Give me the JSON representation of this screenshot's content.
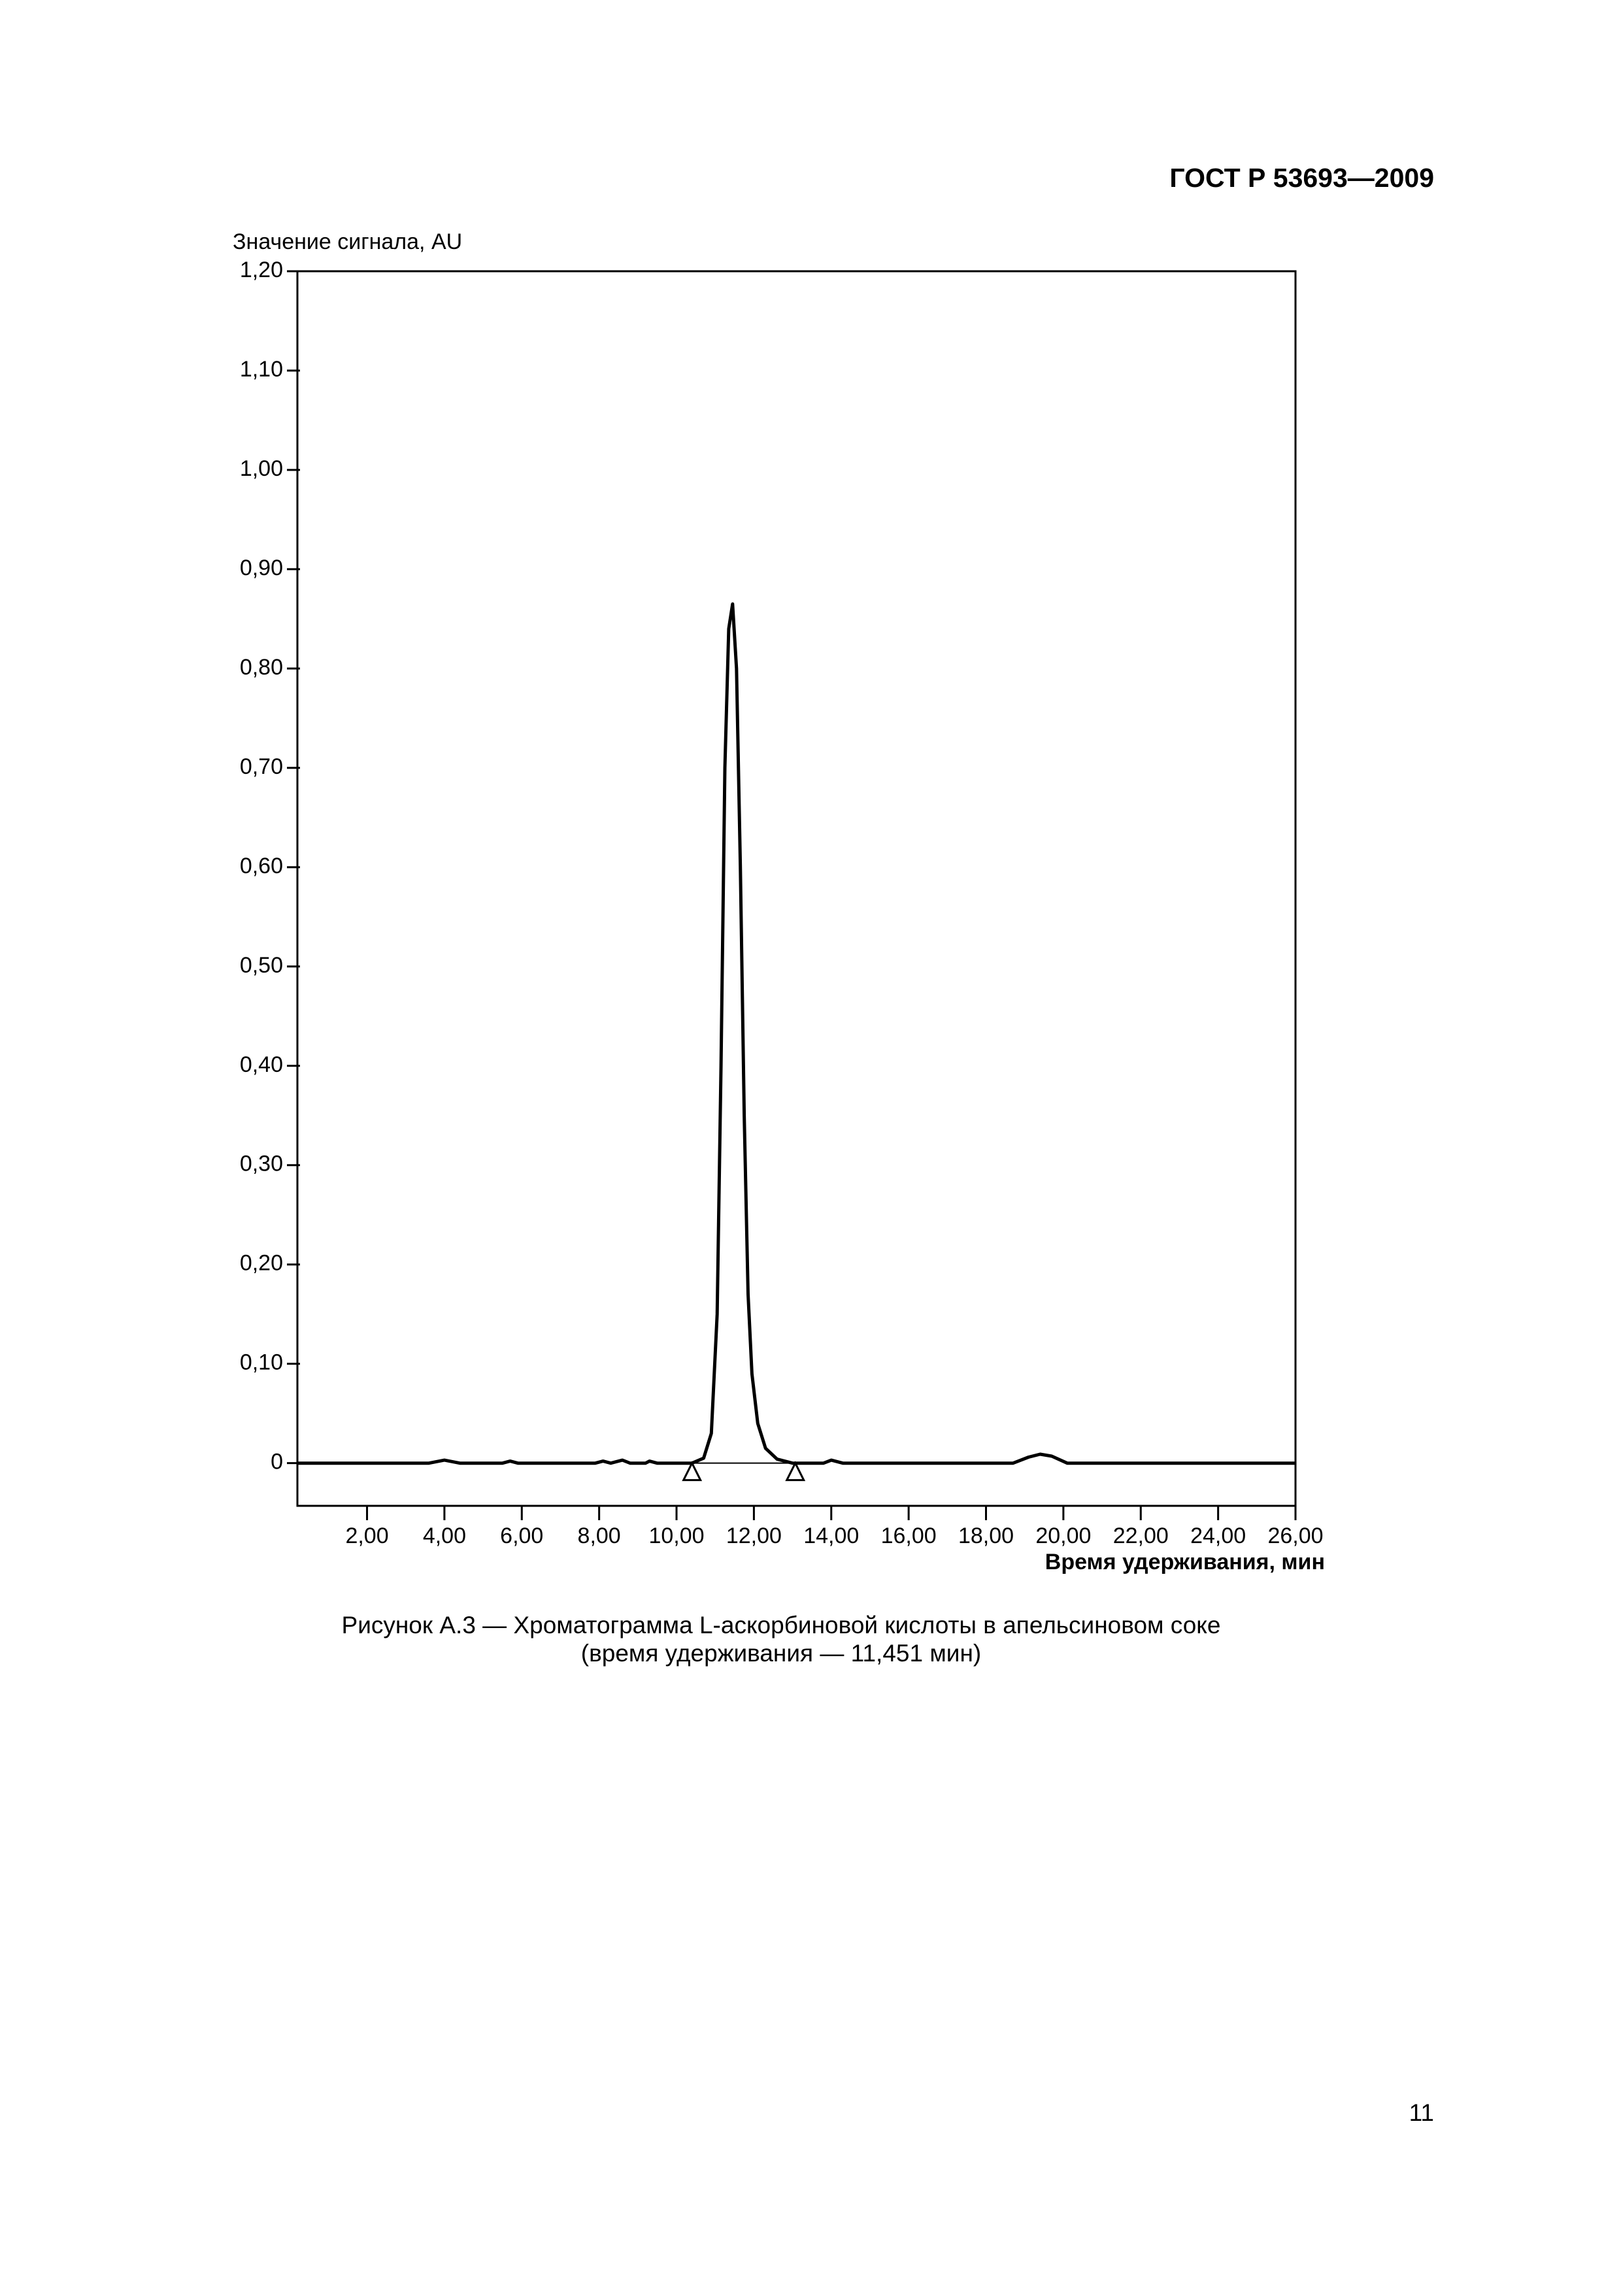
{
  "header": {
    "code": "ГОСТ Р 53693—2009"
  },
  "chart_data": {
    "type": "line",
    "y_label": "Значение сигнала, AU",
    "x_label": "Время удерживания, мин",
    "xlim": [
      0.2,
      26
    ],
    "ylim": [
      -0.043,
      1.2
    ],
    "xticks": [
      {
        "value": 2,
        "label": "2,00"
      },
      {
        "value": 4,
        "label": "4,00"
      },
      {
        "value": 6,
        "label": "6,00"
      },
      {
        "value": 8,
        "label": "8,00"
      },
      {
        "value": 10,
        "label": "10,00"
      },
      {
        "value": 12,
        "label": "12,00"
      },
      {
        "value": 14,
        "label": "14,00"
      },
      {
        "value": 16,
        "label": "16,00"
      },
      {
        "value": 18,
        "label": "18,00"
      },
      {
        "value": 20,
        "label": "20,00"
      },
      {
        "value": 22,
        "label": "22,00"
      },
      {
        "value": 24,
        "label": "24,00"
      },
      {
        "value": 26,
        "label": "26,00"
      }
    ],
    "yticks": [
      0,
      {
        "value": 0.1,
        "label": "0,10"
      },
      {
        "value": 0.2,
        "label": "0,20"
      },
      {
        "value": 0.3,
        "label": "0,30"
      },
      {
        "value": 0.4,
        "label": "0,40"
      },
      {
        "value": 0.5,
        "label": "0,50"
      },
      {
        "value": 0.6,
        "label": "0,60"
      },
      {
        "value": 0.7,
        "label": "0,70"
      },
      {
        "value": 0.8,
        "label": "0,80"
      },
      {
        "value": 0.9,
        "label": "0,90"
      },
      {
        "value": 1.0,
        "label": "1,00"
      },
      {
        "value": 1.1,
        "label": "1,10"
      },
      {
        "value": 1.2,
        "label": "1,20"
      }
    ],
    "x": [
      0.2,
      3.6,
      4.0,
      4.4,
      5.5,
      5.7,
      5.9,
      7.9,
      8.1,
      8.3,
      8.6,
      8.8,
      9.2,
      9.3,
      9.5,
      10.4,
      10.7,
      10.9,
      11.05,
      11.15,
      11.25,
      11.35,
      11.45,
      11.55,
      11.65,
      11.75,
      11.85,
      11.95,
      12.1,
      12.3,
      12.6,
      13.0,
      13.8,
      14.0,
      14.3,
      18.7,
      19.1,
      19.4,
      19.7,
      20.1,
      26
    ],
    "values": [
      0,
      0,
      0.003,
      0,
      0,
      0.002,
      0,
      0,
      0.002,
      0,
      0.003,
      0,
      0,
      0.002,
      0,
      0,
      0.005,
      0.03,
      0.15,
      0.4,
      0.7,
      0.84,
      0.865,
      0.8,
      0.6,
      0.35,
      0.17,
      0.09,
      0.04,
      0.015,
      0.004,
      0,
      0,
      0.003,
      0,
      0,
      0.006,
      0.009,
      0.007,
      0,
      0
    ],
    "color": "#000000",
    "integration_marks": [
      10.4,
      13.07
    ]
  },
  "caption": {
    "line1": "Рисунок А.3 — Хроматограмма L-аскорбиновой кислоты в апельсиновом соке",
    "line2": "(время удерживания — 11,451 мин)"
  },
  "footer": {
    "page_number": "11"
  }
}
